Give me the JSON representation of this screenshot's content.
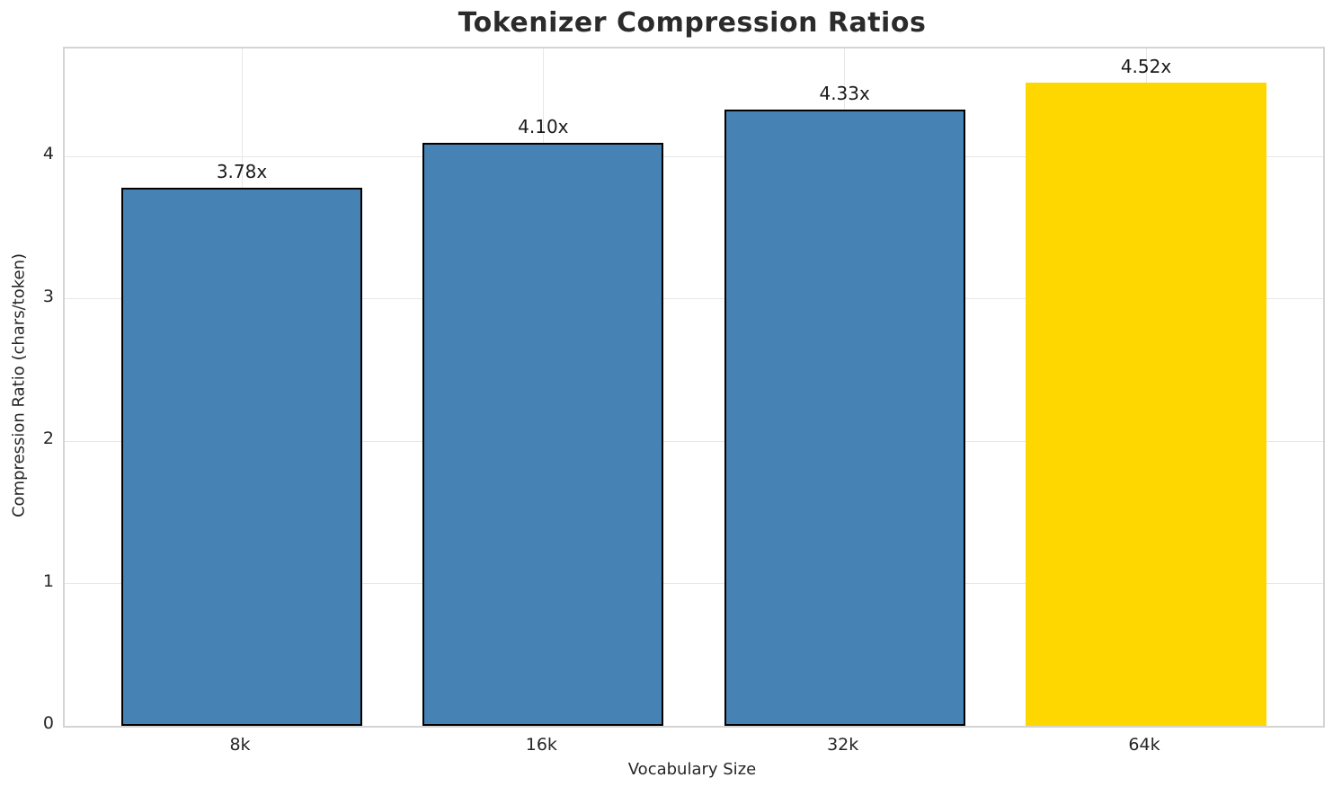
{
  "chart_data": {
    "type": "bar",
    "title": "Tokenizer Compression Ratios",
    "xlabel": "Vocabulary Size",
    "ylabel": "Compression Ratio (chars/token)",
    "categories": [
      "8k",
      "16k",
      "32k",
      "64k"
    ],
    "values": [
      3.78,
      4.1,
      4.33,
      4.52
    ],
    "bar_labels": [
      "3.78x",
      "4.10x",
      "4.33x",
      "4.52x"
    ],
    "yticks": [
      0,
      1,
      2,
      3,
      4
    ],
    "ylim": [
      0,
      4.76
    ],
    "grid": true,
    "legend": "none",
    "highlight_index": 3,
    "bar_colors": [
      "#4682B4",
      "#4682B4",
      "#4682B4",
      "#FFD700"
    ],
    "bar_edge_colors": [
      "#000000",
      "#000000",
      "#000000",
      "none"
    ]
  },
  "colors": {
    "bar_default": "#4682B4",
    "bar_highlight": "#FFD700",
    "bar_edge": "#000000",
    "grid": "#e7e7e7",
    "spine": "#d4d4d4",
    "title_text": "#2b2b2b",
    "tick_text": "#262626"
  }
}
